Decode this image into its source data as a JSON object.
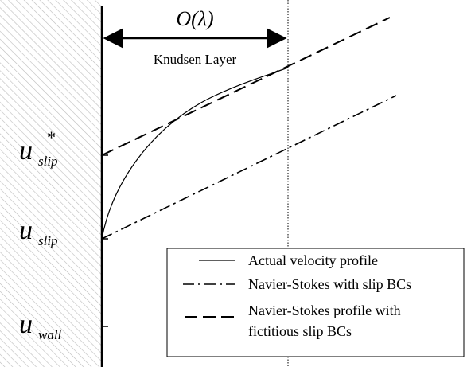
{
  "header": {
    "scale": "O(λ)",
    "layer": "Knudsen Layer"
  },
  "labels": [
    {
      "symbol": "u",
      "superscript": "*",
      "subscript": "slip"
    },
    {
      "symbol": "u",
      "subscript": "slip"
    },
    {
      "symbol": "u",
      "subscript": "wall"
    }
  ],
  "legend": [
    {
      "lines": [
        "Actual velocity profile"
      ]
    },
    {
      "lines": [
        "Navier-Stokes with slip BCs"
      ]
    },
    {
      "lines": [
        "Navier-Stokes profile with",
        "fictitious slip BCs"
      ]
    }
  ]
}
